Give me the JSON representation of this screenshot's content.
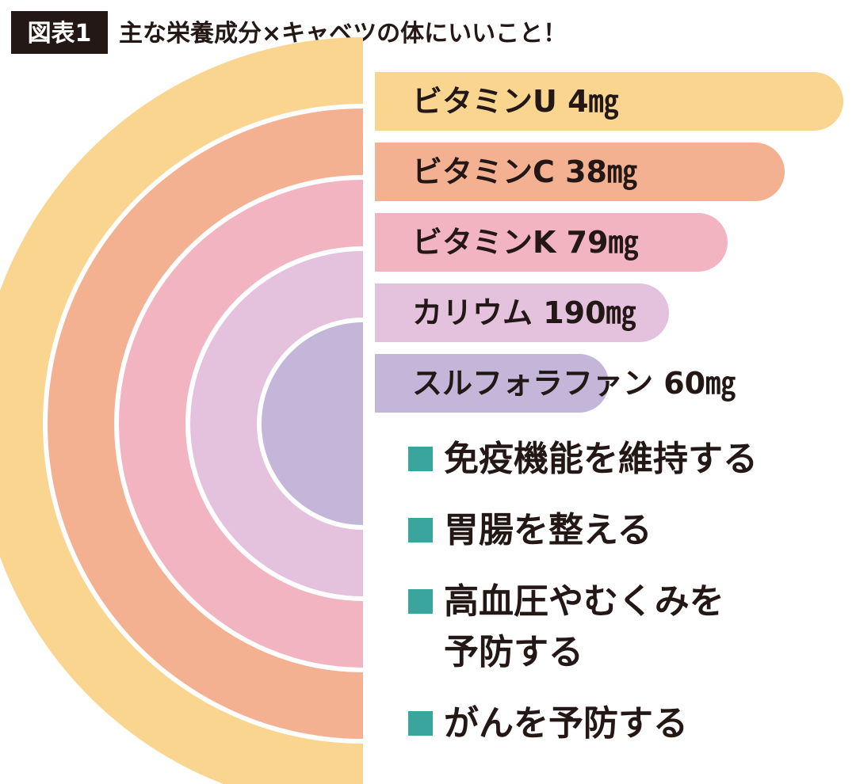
{
  "header": {
    "badge": "図表1",
    "title": "主な栄養成分×キャベツの体にいいこと！"
  },
  "colors": {
    "vitamin_u": "#fad58f",
    "vitamin_c": "#f4b192",
    "vitamin_k": "#f3b4c2",
    "potassium": "#e4c1dc",
    "sulforaphane": "#c4b6d9",
    "benefit_marker": "#3aa59c",
    "badge_bg": "#231815",
    "text": "#231815"
  },
  "chart_data": {
    "type": "bar",
    "series": [
      {
        "key": "vitamin_u",
        "label": "ビタミンU 4㎎",
        "value": 4,
        "unit": "㎎"
      },
      {
        "key": "vitamin_c",
        "label": "ビタミンC 38㎎",
        "value": 38,
        "unit": "㎎"
      },
      {
        "key": "vitamin_k",
        "label": "ビタミンK 79㎎",
        "value": 79,
        "unit": "㎎"
      },
      {
        "key": "potassium",
        "label": "カリウム 190㎎",
        "value": 190,
        "unit": "㎎"
      },
      {
        "key": "sulforaphane",
        "label": "スルフォラファン 60㎎",
        "value": 60,
        "unit": "㎎"
      }
    ]
  },
  "benefits": [
    {
      "lines": [
        "免疫機能を維持する"
      ]
    },
    {
      "lines": [
        "胃腸を整える"
      ]
    },
    {
      "lines": [
        "高血圧やむくみを",
        "予防する"
      ]
    },
    {
      "lines": [
        "がんを予防する"
      ]
    }
  ]
}
